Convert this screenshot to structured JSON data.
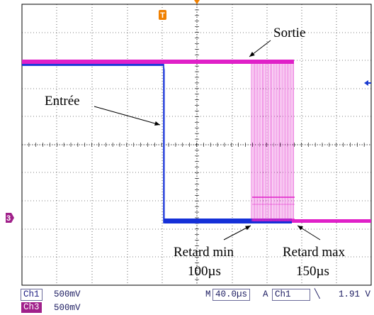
{
  "colors": {
    "input_trace": "#1530d8",
    "output_trace": "#e020c8",
    "grid": "#000000",
    "status_text": "#1a1a60",
    "ch3_chip": "#a0208a",
    "trigger_marker": "#f08000",
    "channel_marker": "#a0208a",
    "level_marker": "#1a3ad0"
  },
  "annotations": {
    "output_label": "Sortie",
    "input_label": "Entrée",
    "delay_min_label": "Retard min",
    "delay_min_value": "100µs",
    "delay_max_label": "Retard max",
    "delay_max_value": "150µs"
  },
  "markers": {
    "trigger_top": "T",
    "channel3_ground": "3",
    "trigger_level_icon": "left-arrow-icon"
  },
  "status_bar": {
    "ch1_label": "Ch1",
    "ch1_scale": "500mV",
    "ch3_label": "Ch3",
    "ch3_scale": "500mV",
    "timebase_prefix": "M",
    "timebase": "40.0µs",
    "trigger_mode": "A",
    "trigger_source": "Ch1",
    "trigger_slope": "╲",
    "trigger_level": "1.91 V"
  }
}
